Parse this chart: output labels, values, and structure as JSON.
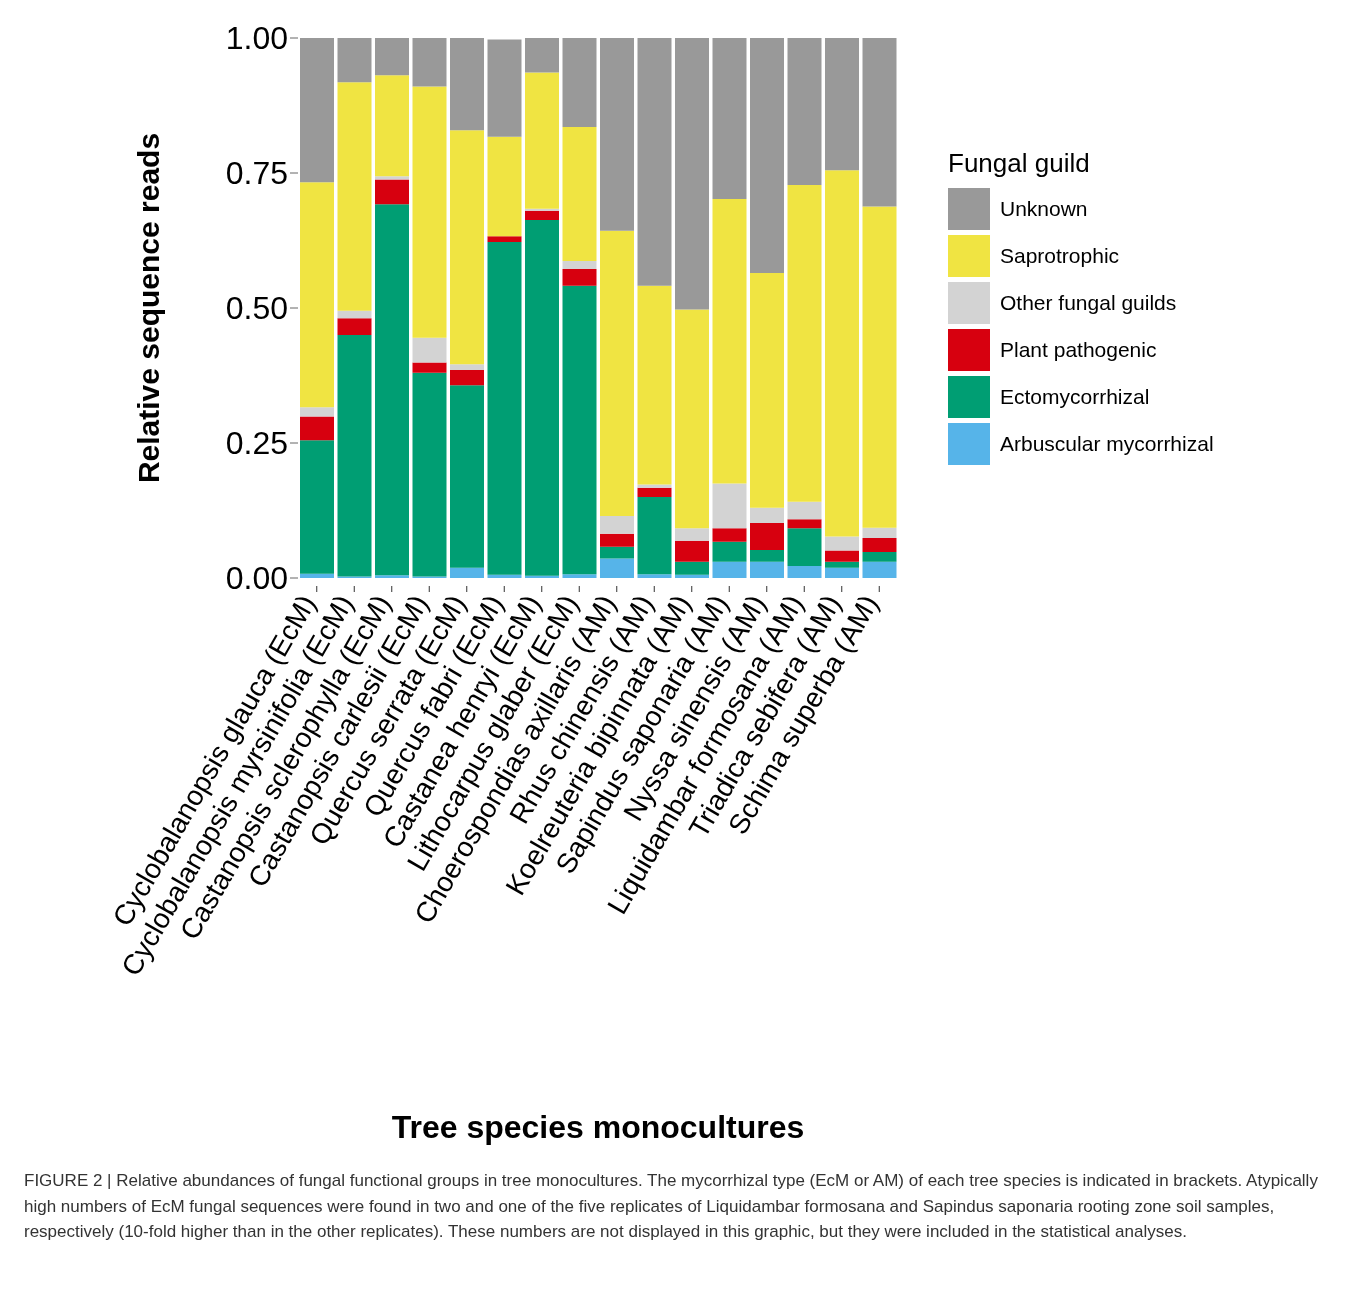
{
  "chart_data": {
    "type": "bar",
    "stacked": true,
    "xlabel": "Tree species monocultures",
    "ylabel": "Relative sequence reads",
    "legend_title": "Fungal guild",
    "legend": "right",
    "grid": false,
    "categories": [
      "Cyclobalanopsis glauca (EcM)",
      "Cyclobalanopsis myrsinifolia (EcM)",
      "Castanopsis sclerophylla (EcM)",
      "Castanopsis carlesii (EcM)",
      "Quercus serrata (EcM)",
      "Quercus fabri (EcM)",
      "Castanea henryi (EcM)",
      "Lithocarpus glaber (EcM)",
      "Choerospondias axillaris (AM)",
      "Rhus chinensis (AM)",
      "Koelreuteria bipinnata (AM)",
      "Sapindus saponaria (AM)",
      "Nyssa sinensis (AM)",
      "Liquidambar formosana (AM)",
      "Triadica sebifera (AM)",
      "Schima superba (AM)"
    ],
    "ylim": [
      0,
      1
    ],
    "yticks": [
      {
        "value": 0,
        "label": "0.00"
      },
      {
        "value": 0.25,
        "label": "0.25"
      },
      {
        "value": 0.5,
        "label": "0.50"
      },
      {
        "value": 0.75,
        "label": "0.75"
      },
      {
        "value": 1,
        "label": "1.00"
      }
    ],
    "series": [
      {
        "name": "Arbuscular mycorrhizal",
        "color": "#56b4e9",
        "values": [
          0.008,
          0.003,
          0.005,
          0.003,
          0.019,
          0.006,
          0.004,
          0.007,
          0.036,
          0.007,
          0.006,
          0.03,
          0.03,
          0.022,
          0.019,
          0.03
        ]
      },
      {
        "name": "Ectomycorrhizal",
        "color": "#009e73",
        "values": [
          0.247,
          0.447,
          0.687,
          0.377,
          0.338,
          0.616,
          0.659,
          0.534,
          0.022,
          0.143,
          0.024,
          0.037,
          0.022,
          0.07,
          0.011,
          0.018
        ]
      },
      {
        "name": "Plant pathogenic",
        "color": "#d7000f",
        "values": [
          0.044,
          0.031,
          0.046,
          0.019,
          0.028,
          0.011,
          0.017,
          0.031,
          0.024,
          0.017,
          0.039,
          0.025,
          0.05,
          0.017,
          0.021,
          0.026
        ]
      },
      {
        "name": "Other fungal guilds",
        "color": "#d3d3d3",
        "values": [
          0.017,
          0.014,
          0.006,
          0.046,
          0.011,
          null,
          0.004,
          0.015,
          0.033,
          0.006,
          0.023,
          0.083,
          0.028,
          0.032,
          0.026,
          0.019
        ]
      },
      {
        "name": "Saprotrophic",
        "color": "#f0e442",
        "values": [
          0.417,
          0.423,
          0.187,
          0.465,
          0.433,
          0.184,
          0.252,
          0.248,
          0.528,
          0.368,
          0.405,
          0.527,
          0.435,
          0.587,
          0.678,
          0.595
        ]
      },
      {
        "name": "Unknown",
        "color": "#999999",
        "values": [
          0.267,
          0.082,
          0.069,
          0.09,
          0.171,
          0.18,
          0.064,
          0.165,
          0.357,
          0.459,
          0.503,
          0.298,
          0.435,
          0.272,
          0.245,
          0.312
        ]
      }
    ],
    "annotations": [
      "FIGURE 2 | Relative abundances of fungal functional groups in tree monocultures. The mycorrhizal type (EcM or AM) of each tree species is indicated in brackets. Atypically high numbers of EcM fungal sequences were found in two and one of the five replicates of Liquidambar formosana and Sapindus saponaria rooting zone soil samples, respectively (10-fold higher than in the other replicates). These numbers are not displayed in this graphic, but they were included in the statistical analyses."
    ]
  }
}
